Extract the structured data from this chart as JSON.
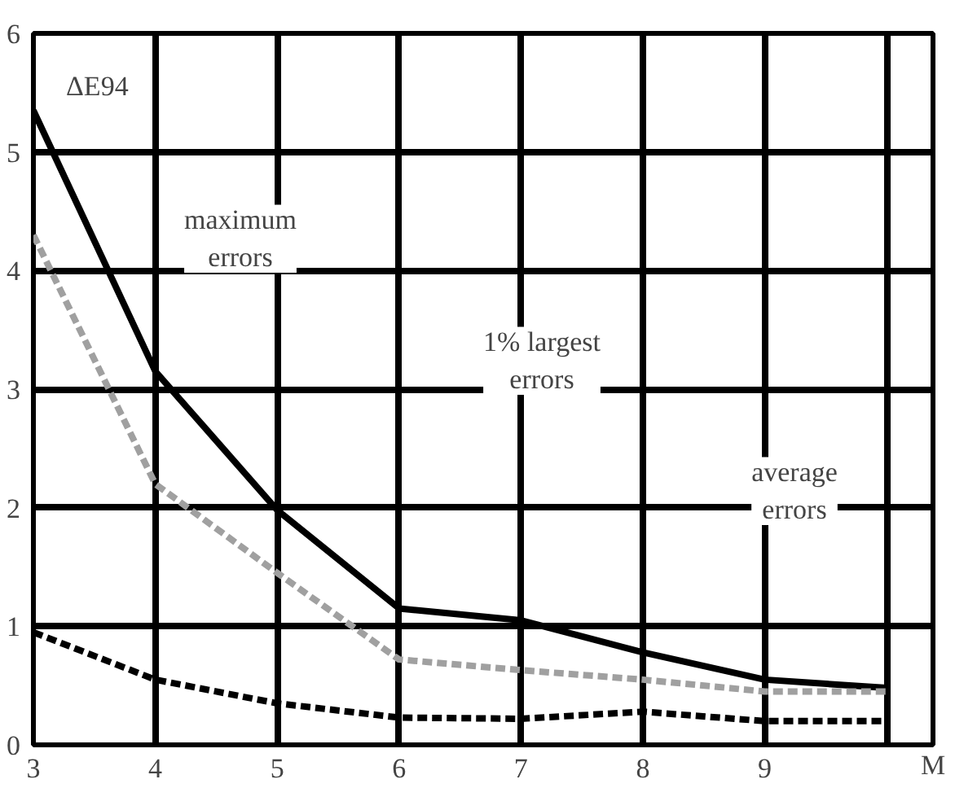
{
  "chart_data": {
    "type": "line",
    "xlabel": "M",
    "x": [
      3,
      4,
      5,
      6,
      7,
      8,
      9,
      10
    ],
    "series": [
      {
        "color": "#000000",
        "line_style": "solid",
        "values": [
          5.35,
          3.15,
          1.98,
          1.15,
          1.05,
          0.78,
          0.55,
          0.48
        ]
      },
      {
        "color": "#a0a0a0",
        "line_style": "dashed",
        "values": [
          4.3,
          2.2,
          1.45,
          0.72,
          0.63,
          0.55,
          0.45,
          0.45
        ]
      },
      {
        "color": "#000000",
        "line_style": "dashed",
        "values": [
          0.95,
          0.55,
          0.35,
          0.23,
          0.22,
          0.28,
          0.2,
          0.2
        ]
      }
    ],
    "xlim": [
      3,
      10.38
    ],
    "ylim": [
      0,
      6
    ],
    "xticks": [
      3,
      4,
      5,
      6,
      7,
      8,
      9,
      {
        "value": 10,
        "label": null
      }
    ],
    "yticks": [
      0,
      1,
      2,
      3,
      4,
      5,
      6
    ],
    "grid": true,
    "annotations": [
      "ΔE94",
      "maximum\nerrors",
      "1% largest\nerrors",
      "average\nerrors"
    ]
  }
}
